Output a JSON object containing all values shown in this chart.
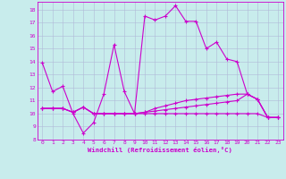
{
  "xlabel": "Windchill (Refroidissement éolien,°C)",
  "background_color": "#c8ecec",
  "grid_color": "#b0b8d8",
  "line_color": "#cc00cc",
  "x_values": [
    0,
    1,
    2,
    3,
    4,
    5,
    6,
    7,
    8,
    9,
    10,
    11,
    12,
    13,
    14,
    15,
    16,
    17,
    18,
    19,
    20,
    21,
    22,
    23
  ],
  "line1": [
    13.9,
    11.7,
    12.1,
    10.0,
    8.5,
    9.3,
    11.5,
    15.3,
    11.7,
    10.0,
    17.5,
    17.2,
    17.5,
    18.3,
    17.1,
    17.1,
    15.0,
    15.5,
    14.2,
    14.0,
    11.5,
    11.1,
    9.7,
    9.7
  ],
  "line2": [
    10.4,
    10.4,
    10.4,
    10.1,
    10.5,
    10.0,
    10.0,
    10.0,
    10.0,
    10.0,
    10.1,
    10.2,
    10.3,
    10.4,
    10.5,
    10.6,
    10.7,
    10.8,
    10.9,
    11.0,
    11.5,
    11.1,
    9.7,
    9.7
  ],
  "line3": [
    10.4,
    10.4,
    10.4,
    10.1,
    10.5,
    10.0,
    10.0,
    10.0,
    10.0,
    10.0,
    10.1,
    10.4,
    10.6,
    10.8,
    11.0,
    11.1,
    11.2,
    11.3,
    11.4,
    11.5,
    11.5,
    11.1,
    9.7,
    9.7
  ],
  "line4": [
    10.4,
    10.4,
    10.4,
    10.1,
    10.5,
    10.0,
    10.0,
    10.0,
    10.0,
    10.0,
    10.0,
    10.0,
    10.0,
    10.0,
    10.0,
    10.0,
    10.0,
    10.0,
    10.0,
    10.0,
    10.0,
    10.0,
    9.7,
    9.7
  ],
  "ylim": [
    8,
    18.6
  ],
  "xlim": [
    -0.5,
    23.5
  ],
  "yticks": [
    8,
    9,
    10,
    11,
    12,
    13,
    14,
    15,
    16,
    17,
    18
  ],
  "xticks": [
    0,
    1,
    2,
    3,
    4,
    5,
    6,
    7,
    8,
    9,
    10,
    11,
    12,
    13,
    14,
    15,
    16,
    17,
    18,
    19,
    20,
    21,
    22,
    23
  ],
  "tick_fontsize": 4.5,
  "xlabel_fontsize": 5.2,
  "marker_size": 3.5,
  "line_width": 0.8
}
